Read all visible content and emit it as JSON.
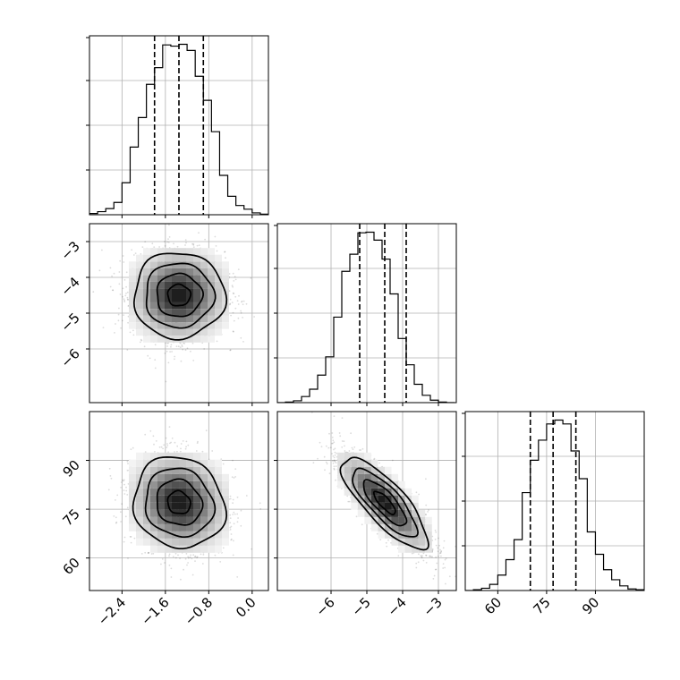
{
  "chart_data": {
    "type": "corner",
    "n_samples": 6000,
    "parameters": [
      {
        "range": [
          -3.0,
          0.3
        ],
        "ticks": [
          -2.4,
          -1.6,
          -0.8,
          0.0
        ],
        "tick_labels": [
          "−2.4",
          "−1.6",
          "−0.8",
          "0.0"
        ],
        "quantiles": [
          -1.8,
          -1.35,
          -0.9
        ],
        "hist_bins": [
          -3.0,
          -2.85,
          -2.7,
          -2.55,
          -2.4,
          -2.25,
          -2.1,
          -1.95,
          -1.8,
          -1.65,
          -1.5,
          -1.35,
          -1.2,
          -1.05,
          -0.9,
          -0.75,
          -0.6,
          -0.45,
          -0.3,
          -0.15,
          0.0,
          0.15,
          0.3
        ],
        "hist_counts": [
          2,
          5,
          10,
          20,
          52,
          110,
          158,
          212,
          239,
          276,
          274,
          277,
          267,
          225,
          186,
          135,
          64,
          30,
          15,
          9,
          3,
          1
        ]
      },
      {
        "range": [
          -7.5,
          -2.5
        ],
        "ticks": [
          -6,
          -5,
          -4,
          -3
        ],
        "tick_labels": [
          "−6",
          "−5",
          "−4",
          "−3"
        ],
        "quantiles": [
          -5.2,
          -4.5,
          -3.9
        ],
        "hist_bins": [
          -7.5,
          -7.275,
          -7.05,
          -6.825,
          -6.6,
          -6.375,
          -6.15,
          -5.925,
          -5.7,
          -5.475,
          -5.25,
          -5.025,
          -4.8,
          -4.575,
          -4.35,
          -4.125,
          -3.9,
          -3.675,
          -3.45,
          -3.225,
          -3.0,
          -2.775,
          -2.55
        ],
        "hist_counts": [
          0,
          1,
          3,
          10,
          22,
          45,
          75,
          140,
          215,
          243,
          278,
          279,
          266,
          235,
          178,
          105,
          62,
          30,
          12,
          4,
          1,
          0
        ]
      },
      {
        "range": [
          50,
          105
        ],
        "ticks": [
          60,
          75,
          90
        ],
        "tick_labels": [
          "60",
          "75",
          "90"
        ],
        "quantiles": [
          70,
          77,
          84
        ],
        "hist_bins": [
          50,
          52.5,
          55,
          57.5,
          60,
          62.5,
          65,
          67.5,
          70,
          72.5,
          75,
          77.5,
          80,
          82.5,
          85,
          87.5,
          90,
          92.5,
          95,
          97.5,
          100,
          102.5,
          105
        ],
        "hist_counts": [
          0,
          1,
          3,
          8,
          20,
          40,
          66,
          127,
          169,
          195,
          216,
          221,
          216,
          181,
          145,
          76,
          47,
          27,
          14,
          6,
          2,
          1
        ]
      }
    ],
    "pairs": [
      {
        "x": 0,
        "y": 1,
        "center": [
          -1.35,
          -4.5
        ],
        "sigma": [
          0.42,
          0.6
        ],
        "correlation": 0.0
      },
      {
        "x": 0,
        "y": 2,
        "center": [
          -1.35,
          77
        ],
        "sigma": [
          0.42,
          7
        ],
        "correlation": -0.1
      },
      {
        "x": 1,
        "y": 2,
        "center": [
          -4.5,
          77
        ],
        "sigma": [
          0.6,
          7
        ],
        "correlation": -0.8
      }
    ],
    "contour_levels": [
      0.5,
      1.0,
      1.5,
      2.0
    ],
    "grid": true,
    "title": "",
    "legend": "none"
  }
}
